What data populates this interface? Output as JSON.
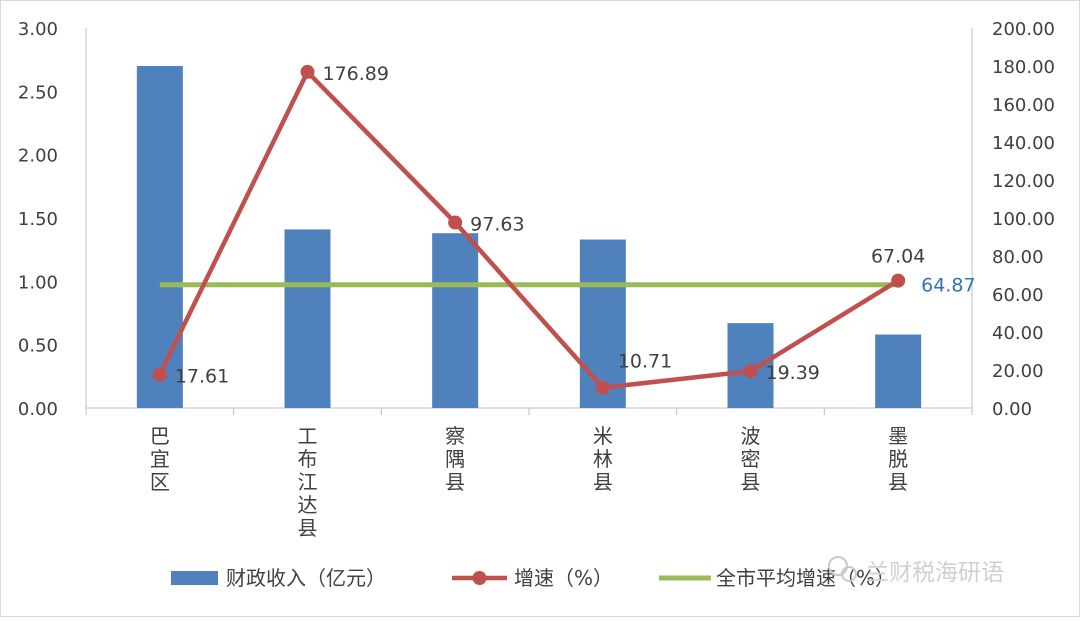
{
  "chart_data": {
    "type": "bar",
    "categories": [
      "巴宜区",
      "工布江达县",
      "察隅县",
      "米林县",
      "波密县",
      "墨脱县"
    ],
    "y_left": {
      "ticks": [
        "0.00",
        "0.50",
        "1.00",
        "1.50",
        "2.00",
        "2.50",
        "3.00"
      ],
      "range": [
        0,
        3
      ]
    },
    "y_right": {
      "ticks": [
        "0.00",
        "20.00",
        "40.00",
        "60.00",
        "80.00",
        "100.00",
        "120.00",
        "140.00",
        "160.00",
        "180.00",
        "200.00"
      ],
      "range": [
        0,
        200
      ]
    },
    "grid": false,
    "legend_position": "bottom",
    "series": [
      {
        "name": "财政收入（亿元）",
        "kind": "bar",
        "axis": "left",
        "color": "#4F81BD",
        "values": [
          2.7,
          1.41,
          1.38,
          1.33,
          0.67,
          0.58
        ]
      },
      {
        "name": "增速（%）",
        "kind": "line-marker",
        "axis": "right",
        "color": "#C0504D",
        "values": [
          17.61,
          176.89,
          97.63,
          10.71,
          19.39,
          67.04
        ],
        "labels": [
          "17.61",
          "176.89",
          "97.63",
          "10.71",
          "19.39",
          "67.04"
        ]
      },
      {
        "name": "全市平均增速（%）",
        "kind": "line",
        "axis": "right",
        "color": "#9BBB59",
        "values": [
          64.87,
          64.87,
          64.87,
          64.87,
          64.87,
          64.87
        ],
        "label": "64.87",
        "label_color": "#2E75B6"
      }
    ]
  },
  "watermark": {
    "text": "兰财税海研语"
  }
}
